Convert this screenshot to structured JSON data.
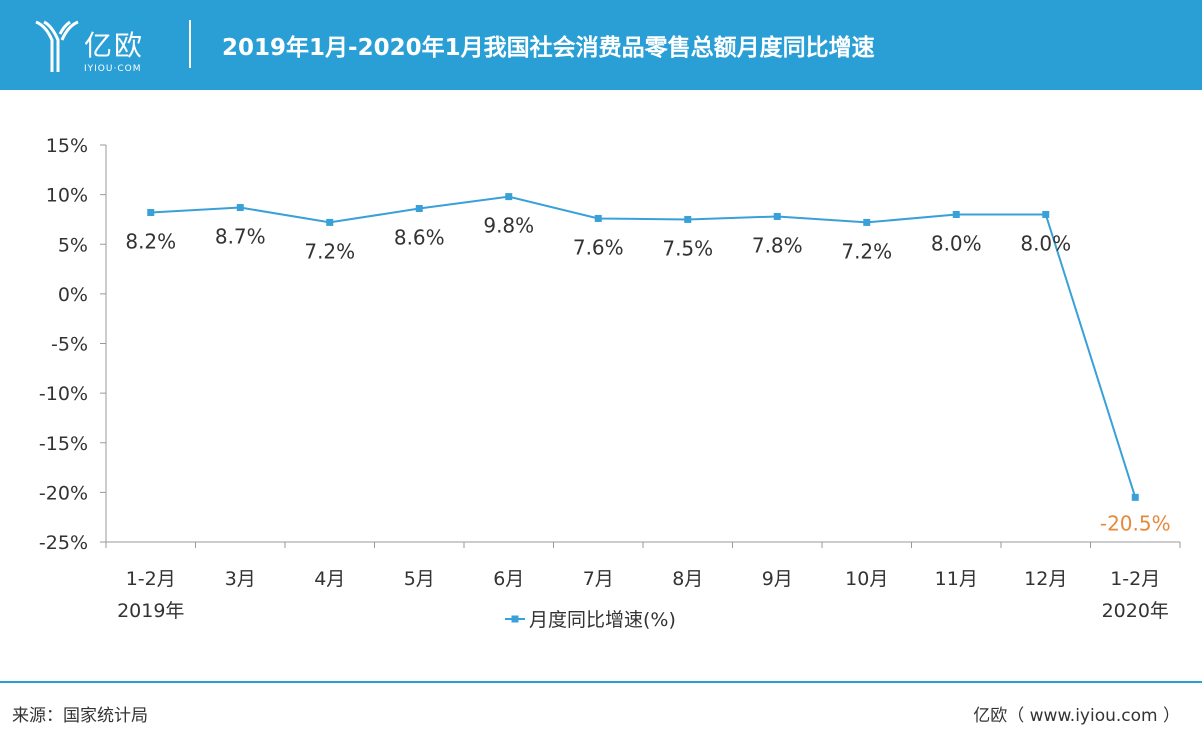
{
  "header": {
    "brand": "亿欧",
    "brand_sub": "IYIOU·COM",
    "title": "2019年1月-2020年1月我国社会消费品零售总额月度同比增速"
  },
  "footer": {
    "source": "来源：国家统计局",
    "credit": "亿欧（ www.iyiou.com ）"
  },
  "colors": {
    "header_bg": "#2a9fd6",
    "series_line": "#3aa0d8",
    "highlight_label": "#e6893a",
    "axis": "#9a9a9a"
  },
  "chart_data": {
    "type": "line",
    "title": "",
    "xlabel": "",
    "ylabel": "",
    "ylim": [
      -25,
      15
    ],
    "y_ticks": [
      15,
      10,
      5,
      0,
      -5,
      -10,
      -15,
      -20,
      -25
    ],
    "y_tick_labels": [
      "15%",
      "10%",
      "5%",
      "0%",
      "-5%",
      "-10%",
      "-15%",
      "-20%",
      "-25%"
    ],
    "categories": [
      "1-2月",
      "3月",
      "4月",
      "5月",
      "6月",
      "7月",
      "8月",
      "9月",
      "10月",
      "11月",
      "12月",
      "1-2月"
    ],
    "year_labels": [
      "2019年",
      "",
      "",
      "",
      "",
      "",
      "",
      "",
      "",
      "",
      "",
      "2020年"
    ],
    "series": [
      {
        "name": "月度同比增速(%)",
        "values": [
          8.2,
          8.7,
          7.2,
          8.6,
          9.8,
          7.6,
          7.5,
          7.8,
          7.2,
          8.0,
          8.0,
          -20.5
        ],
        "value_labels": [
          "8.2%",
          "8.7%",
          "7.2%",
          "8.6%",
          "9.8%",
          "7.6%",
          "7.5%",
          "7.8%",
          "7.2%",
          "8.0%",
          "8.0%",
          "-20.5%"
        ]
      }
    ],
    "grid": false,
    "legend_position": "bottom"
  }
}
